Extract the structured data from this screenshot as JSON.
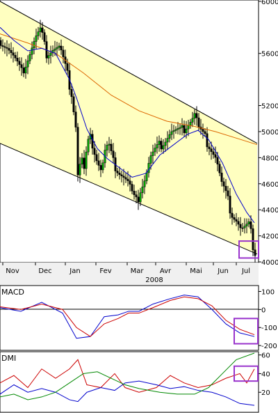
{
  "chart_data": [
    {
      "type": "candlestick",
      "panel": "price",
      "x_months": [
        "Nov",
        "Dec",
        "Jan",
        "Fev",
        "Mar",
        "Avr",
        "Mai",
        "Jun",
        "Jul"
      ],
      "x_year_label": "2008",
      "y_ticks": [
        6000,
        5600,
        5200,
        5000,
        4800,
        4600,
        4400,
        4200,
        4000
      ],
      "ylim": [
        3995,
        6010
      ],
      "channel": {
        "upper": {
          "start": [
            0,
            6000
          ],
          "end": [
            370,
            4910
          ]
        },
        "lower": {
          "start": [
            0,
            4910
          ],
          "end": [
            370,
            4060
          ]
        }
      },
      "close_path": [
        [
          0,
          5700
        ],
        [
          10,
          5650
        ],
        [
          20,
          5560
        ],
        [
          30,
          5450
        ],
        [
          40,
          5580
        ],
        [
          50,
          5720
        ],
        [
          58,
          5780
        ],
        [
          65,
          5600
        ],
        [
          75,
          5640
        ],
        [
          85,
          5650
        ],
        [
          95,
          5450
        ],
        [
          102,
          5300
        ],
        [
          108,
          5050
        ],
        [
          112,
          4550
        ],
        [
          115,
          4850
        ],
        [
          120,
          4700
        ],
        [
          125,
          4900
        ],
        [
          130,
          4950
        ],
        [
          138,
          4800
        ],
        [
          145,
          4700
        ],
        [
          150,
          4850
        ],
        [
          155,
          4900
        ],
        [
          162,
          4760
        ],
        [
          170,
          4700
        ],
        [
          178,
          4650
        ],
        [
          185,
          4600
        ],
        [
          190,
          4500
        ],
        [
          196,
          4450
        ],
        [
          200,
          4550
        ],
        [
          208,
          4650
        ],
        [
          215,
          4800
        ],
        [
          222,
          4850
        ],
        [
          230,
          4900
        ],
        [
          238,
          4950
        ],
        [
          245,
          5000
        ],
        [
          252,
          5000
        ],
        [
          260,
          5000
        ],
        [
          268,
          5060
        ],
        [
          275,
          5100
        ],
        [
          280,
          5150
        ],
        [
          285,
          5020
        ],
        [
          292,
          4960
        ],
        [
          300,
          4900
        ],
        [
          310,
          4800
        ],
        [
          318,
          4600
        ],
        [
          325,
          4500
        ],
        [
          332,
          4380
        ],
        [
          340,
          4320
        ],
        [
          346,
          4250
        ],
        [
          352,
          4260
        ],
        [
          358,
          4280
        ],
        [
          362,
          4150
        ],
        [
          366,
          4080
        ]
      ],
      "moving_average_short": {
        "color": "#0000cc",
        "points": [
          [
            0,
            5800
          ],
          [
            20,
            5700
          ],
          [
            40,
            5620
          ],
          [
            60,
            5640
          ],
          [
            80,
            5600
          ],
          [
            100,
            5400
          ],
          [
            110,
            5260
          ],
          [
            125,
            5020
          ],
          [
            140,
            4870
          ],
          [
            155,
            4790
          ],
          [
            170,
            4730
          ],
          [
            190,
            4650
          ],
          [
            210,
            4680
          ],
          [
            230,
            4820
          ],
          [
            250,
            4900
          ],
          [
            270,
            4980
          ],
          [
            285,
            5010
          ],
          [
            300,
            4940
          ],
          [
            320,
            4760
          ],
          [
            340,
            4520
          ],
          [
            355,
            4380
          ],
          [
            366,
            4300
          ]
        ]
      },
      "moving_average_long": {
        "color": "#dd6600",
        "points": [
          [
            0,
            5750
          ],
          [
            40,
            5680
          ],
          [
            80,
            5600
          ],
          [
            120,
            5450
          ],
          [
            160,
            5280
          ],
          [
            200,
            5160
          ],
          [
            240,
            5080
          ],
          [
            280,
            5040
          ],
          [
            310,
            5000
          ],
          [
            340,
            4950
          ],
          [
            370,
            4900
          ]
        ]
      },
      "highlight": {
        "x": 358,
        "y_range": [
          4030,
          4160
        ],
        "color": "#9933cc"
      }
    },
    {
      "type": "line",
      "panel": "macd",
      "title": "MACD",
      "y_ticks": [
        100,
        0,
        -100,
        -200
      ],
      "ylim": [
        -215,
        125
      ],
      "series": [
        {
          "color": "#0000cc",
          "values": [
            [
              0,
              10
            ],
            [
              30,
              -10
            ],
            [
              60,
              40
            ],
            [
              90,
              -20
            ],
            [
              110,
              -160
            ],
            [
              130,
              -150
            ],
            [
              150,
              -40
            ],
            [
              170,
              -30
            ],
            [
              185,
              -10
            ],
            [
              200,
              -10
            ],
            [
              220,
              30
            ],
            [
              245,
              60
            ],
            [
              265,
              80
            ],
            [
              285,
              70
            ],
            [
              305,
              0
            ],
            [
              325,
              -80
            ],
            [
              345,
              -130
            ],
            [
              366,
              -150
            ]
          ]
        },
        {
          "color": "#cc0000",
          "values": [
            [
              0,
              15
            ],
            [
              30,
              0
            ],
            [
              60,
              30
            ],
            [
              90,
              0
            ],
            [
              110,
              -100
            ],
            [
              130,
              -150
            ],
            [
              150,
              -80
            ],
            [
              170,
              -50
            ],
            [
              185,
              -20
            ],
            [
              200,
              -20
            ],
            [
              220,
              10
            ],
            [
              245,
              50
            ],
            [
              265,
              70
            ],
            [
              285,
              60
            ],
            [
              305,
              20
            ],
            [
              325,
              -60
            ],
            [
              345,
              -110
            ],
            [
              366,
              -140
            ]
          ]
        }
      ],
      "highlight": {
        "x": 354,
        "y_range": [
          -190,
          -50
        ],
        "color": "#9933cc"
      }
    },
    {
      "type": "line",
      "panel": "dmi",
      "title": "DMI",
      "y_ticks": [
        60,
        40,
        20
      ],
      "ylim": [
        0,
        62
      ],
      "series": [
        {
          "color": "#cc0000",
          "values": [
            [
              0,
              30
            ],
            [
              20,
              38
            ],
            [
              40,
              25
            ],
            [
              60,
              45
            ],
            [
              80,
              35
            ],
            [
              100,
              45
            ],
            [
              112,
              55
            ],
            [
              125,
              28
            ],
            [
              145,
              25
            ],
            [
              165,
              40
            ],
            [
              180,
              25
            ],
            [
              200,
              20
            ],
            [
              225,
              25
            ],
            [
              245,
              38
            ],
            [
              265,
              30
            ],
            [
              285,
              25
            ],
            [
              305,
              28
            ],
            [
              325,
              35
            ],
            [
              345,
              40
            ],
            [
              355,
              30
            ],
            [
              366,
              45
            ]
          ]
        },
        {
          "color": "#0000cc",
          "values": [
            [
              0,
              18
            ],
            [
              20,
              28
            ],
            [
              40,
              20
            ],
            [
              60,
              24
            ],
            [
              80,
              20
            ],
            [
              100,
              12
            ],
            [
              112,
              10
            ],
            [
              125,
              20
            ],
            [
              145,
              25
            ],
            [
              165,
              22
            ],
            [
              180,
              30
            ],
            [
              200,
              32
            ],
            [
              225,
              28
            ],
            [
              245,
              24
            ],
            [
              265,
              26
            ],
            [
              285,
              22
            ],
            [
              305,
              20
            ],
            [
              325,
              15
            ],
            [
              345,
              8
            ],
            [
              366,
              6
            ]
          ]
        },
        {
          "color": "#008800",
          "values": [
            [
              0,
              15
            ],
            [
              20,
              18
            ],
            [
              40,
              12
            ],
            [
              60,
              15
            ],
            [
              80,
              20
            ],
            [
              100,
              30
            ],
            [
              120,
              40
            ],
            [
              140,
              42
            ],
            [
              160,
              35
            ],
            [
              180,
              28
            ],
            [
              200,
              24
            ],
            [
              230,
              20
            ],
            [
              255,
              18
            ],
            [
              280,
              18
            ],
            [
              300,
              25
            ],
            [
              320,
              40
            ],
            [
              340,
              55
            ],
            [
              366,
              62
            ]
          ]
        }
      ],
      "highlight": {
        "x": 354,
        "y_range": [
          32,
          48
        ],
        "color": "#9933cc"
      }
    }
  ]
}
